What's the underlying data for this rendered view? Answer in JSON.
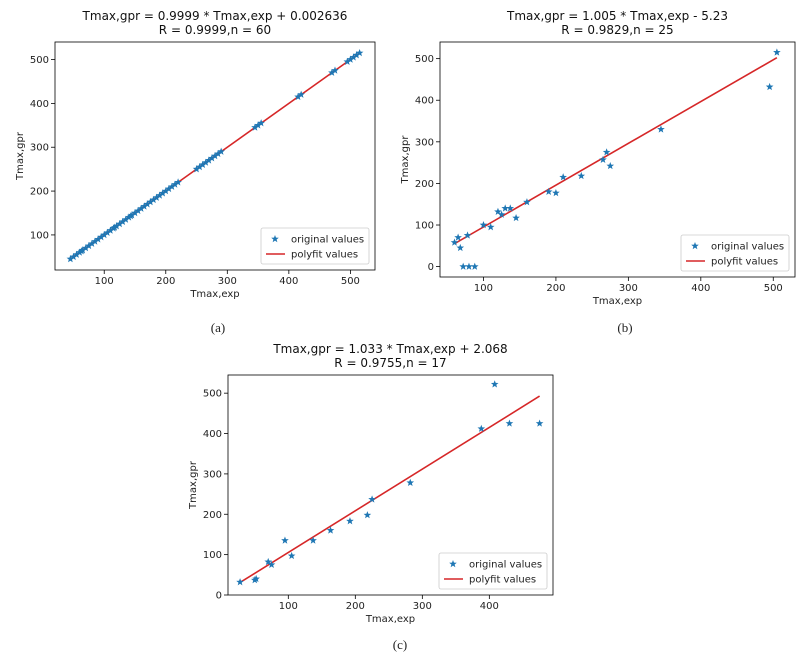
{
  "colors": {
    "points": "#1f77b4",
    "fit": "#d62728",
    "axes": "#000000",
    "legend_border": "#cccccc"
  },
  "chart_data": [
    {
      "type": "scatter",
      "title": "Tmax,gpr = 0.9999 * Tmax,exp + 0.002636",
      "subtitle": "R = 0.9999,n = 60",
      "xlabel": "Tmax,exp",
      "ylabel": "Tmax,gpr",
      "xlim": [
        20,
        540
      ],
      "ylim": [
        20,
        540
      ],
      "xticks": [
        100,
        200,
        300,
        400,
        500
      ],
      "yticks": [
        100,
        200,
        300,
        400,
        500
      ],
      "grid": false,
      "legend": "lower-right",
      "caption": "(a)",
      "series": [
        {
          "name": "original values",
          "kind": "marker",
          "marker": "star",
          "points": [
            [
              45,
              45
            ],
            [
              50,
              50
            ],
            [
              55,
              55
            ],
            [
              60,
              60
            ],
            [
              65,
              65
            ],
            [
              70,
              70
            ],
            [
              75,
              75
            ],
            [
              80,
              80
            ],
            [
              85,
              85
            ],
            [
              90,
              90
            ],
            [
              95,
              95
            ],
            [
              100,
              100
            ],
            [
              105,
              105
            ],
            [
              110,
              110
            ],
            [
              115,
              115
            ],
            [
              120,
              120
            ],
            [
              125,
              125
            ],
            [
              130,
              130
            ],
            [
              135,
              135
            ],
            [
              140,
              140
            ],
            [
              145,
              145
            ],
            [
              150,
              150
            ],
            [
              155,
              155
            ],
            [
              160,
              160
            ],
            [
              165,
              165
            ],
            [
              170,
              170
            ],
            [
              175,
              175
            ],
            [
              180,
              180
            ],
            [
              185,
              185
            ],
            [
              190,
              190
            ],
            [
              195,
              195
            ],
            [
              200,
              200
            ],
            [
              205,
              205
            ],
            [
              210,
              210
            ],
            [
              215,
              215
            ],
            [
              220,
              220
            ],
            [
              250,
              250
            ],
            [
              255,
              255
            ],
            [
              260,
              260
            ],
            [
              265,
              265
            ],
            [
              270,
              270
            ],
            [
              275,
              275
            ],
            [
              280,
              280
            ],
            [
              285,
              285
            ],
            [
              290,
              290
            ],
            [
              345,
              345
            ],
            [
              350,
              350
            ],
            [
              355,
              355
            ],
            [
              415,
              415
            ],
            [
              420,
              420
            ],
            [
              470,
              470
            ],
            [
              475,
              475
            ],
            [
              495,
              495
            ],
            [
              500,
              500
            ],
            [
              505,
              505
            ],
            [
              510,
              510
            ],
            [
              515,
              515
            ],
            [
              63,
              63
            ],
            [
              117,
              117
            ],
            [
              143,
              143
            ]
          ]
        },
        {
          "name": "polyfit values",
          "kind": "line",
          "slope": 0.9999,
          "intercept": 0.002636,
          "xrange": [
            45,
            515
          ]
        }
      ]
    },
    {
      "type": "scatter",
      "title": "Tmax,gpr = 1.005 * Tmax,exp - 5.23",
      "subtitle": "R = 0.9829,n = 25",
      "xlabel": "Tmax,exp",
      "ylabel": "Tmax,gpr",
      "xlim": [
        40,
        530
      ],
      "ylim": [
        -25,
        540
      ],
      "xticks": [
        100,
        200,
        300,
        400,
        500
      ],
      "yticks": [
        0,
        100,
        200,
        300,
        400,
        500
      ],
      "grid": false,
      "legend": "lower-right",
      "caption": "(b)",
      "series": [
        {
          "name": "original values",
          "kind": "marker",
          "marker": "star",
          "points": [
            [
              60,
              58
            ],
            [
              65,
              70
            ],
            [
              68,
              45
            ],
            [
              72,
              0
            ],
            [
              78,
              75
            ],
            [
              80,
              0
            ],
            [
              88,
              0
            ],
            [
              100,
              100
            ],
            [
              110,
              95
            ],
            [
              120,
              132
            ],
            [
              125,
              125
            ],
            [
              130,
              140
            ],
            [
              137,
              140
            ],
            [
              145,
              117
            ],
            [
              160,
              155
            ],
            [
              190,
              180
            ],
            [
              200,
              177
            ],
            [
              210,
              215
            ],
            [
              235,
              218
            ],
            [
              265,
              257
            ],
            [
              270,
              275
            ],
            [
              275,
              242
            ],
            [
              345,
              330
            ],
            [
              495,
              432
            ],
            [
              505,
              515
            ]
          ]
        },
        {
          "name": "polyfit values",
          "kind": "line",
          "slope": 1.005,
          "intercept": -5.23,
          "xrange": [
            60,
            505
          ]
        }
      ]
    },
    {
      "type": "scatter",
      "title": "Tmax,gpr = 1.033 * Tmax,exp + 2.068",
      "subtitle": "R = 0.9755,n = 17",
      "xlabel": "Tmax,exp",
      "ylabel": "Tmax,gpr",
      "xlim": [
        10,
        495
      ],
      "ylim": [
        0,
        545
      ],
      "xticks": [
        100,
        200,
        300,
        400
      ],
      "yticks": [
        0,
        100,
        200,
        300,
        400,
        500
      ],
      "grid": false,
      "legend": "lower-right",
      "caption": "(c)",
      "series": [
        {
          "name": "original values",
          "kind": "marker",
          "marker": "star",
          "points": [
            [
              28,
              32
            ],
            [
              50,
              37
            ],
            [
              52,
              40
            ],
            [
              70,
              82
            ],
            [
              75,
              75
            ],
            [
              95,
              135
            ],
            [
              105,
              97
            ],
            [
              137,
              135
            ],
            [
              163,
              160
            ],
            [
              192,
              183
            ],
            [
              218,
              198
            ],
            [
              225,
              237
            ],
            [
              282,
              278
            ],
            [
              388,
              412
            ],
            [
              408,
              522
            ],
            [
              475,
              425
            ],
            [
              430,
              425
            ]
          ]
        },
        {
          "name": "polyfit values",
          "kind": "line",
          "slope": 1.033,
          "intercept": 2.068,
          "xrange": [
            28,
            475
          ]
        }
      ]
    }
  ]
}
